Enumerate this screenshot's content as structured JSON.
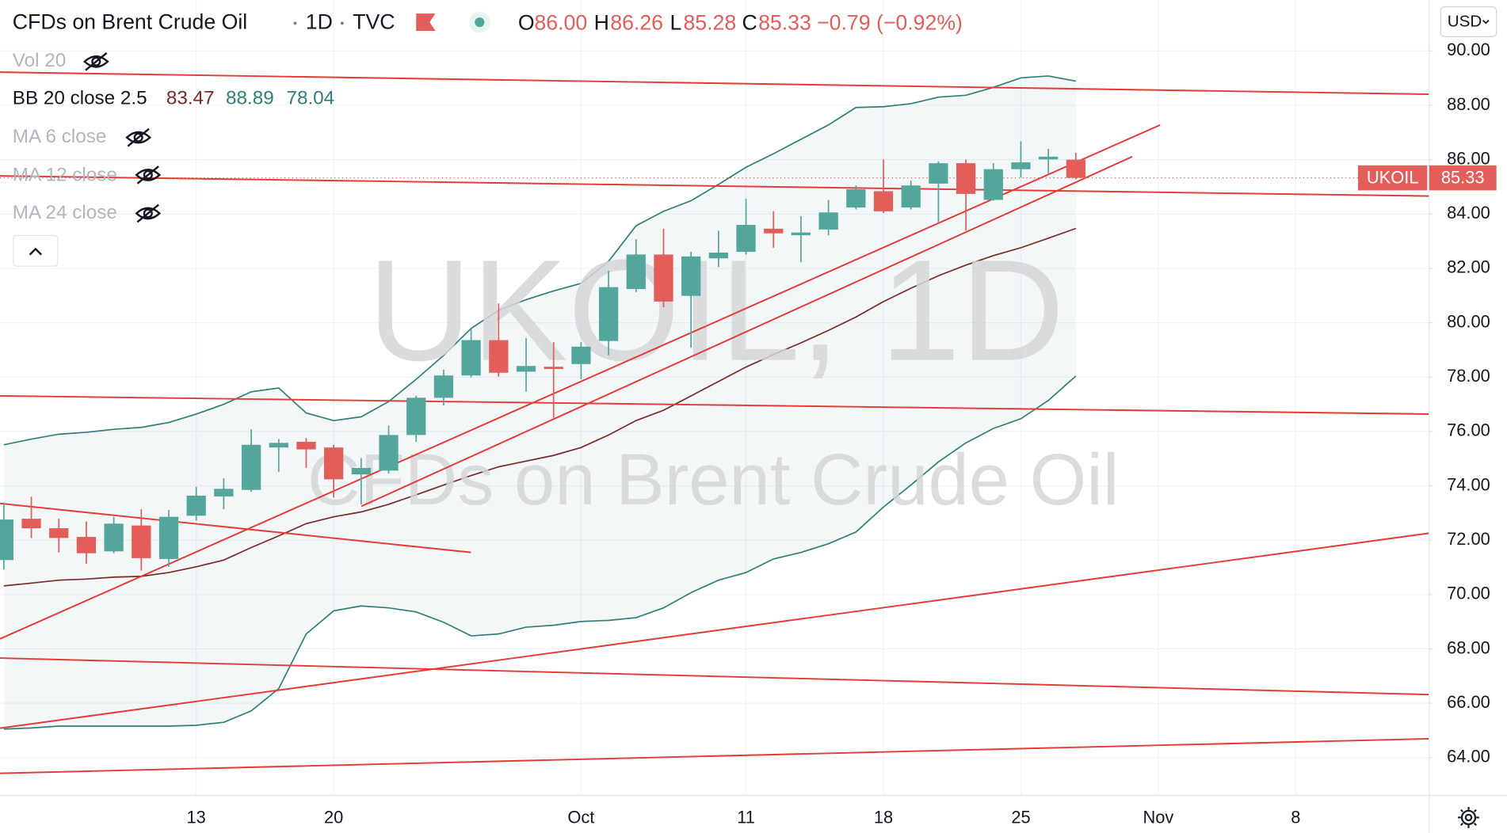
{
  "header": {
    "symbol_title": "CFDs on Brent Crude Oil",
    "interval": "1D",
    "source": "TVC",
    "open_label": "O",
    "open": "86.00",
    "high_label": "H",
    "high": "86.26",
    "low_label": "L",
    "low": "85.28",
    "close_label": "C",
    "close": "85.33",
    "change": "−0.79 (−0.92%)",
    "currency": "USD"
  },
  "indicators": {
    "vol": "Vol 20",
    "bb": "BB 20 close 2.5",
    "bb_basis": "83.47",
    "bb_upper": "88.89",
    "bb_lower": "78.04",
    "ma6": "MA 6 close",
    "ma12": "MA 12 close",
    "ma24": "MA 24 close"
  },
  "watermark": {
    "symbol": "UKOIL, 1D",
    "description": "CFDs on Brent Crude Oil"
  },
  "price_label": {
    "symbol": "UKOIL",
    "value": "85.33"
  },
  "chart_data": {
    "type": "candlestick",
    "categories": [
      null,
      null,
      null,
      null,
      null,
      null,
      null,
      "13",
      null,
      null,
      null,
      null,
      "20",
      null,
      null,
      null,
      null,
      null,
      null,
      null,
      null,
      "Oct",
      null,
      null,
      null,
      null,
      null,
      "11",
      null,
      null,
      null,
      null,
      "18",
      null,
      null,
      null,
      null,
      "25",
      null,
      null,
      null,
      null,
      "Nov",
      null,
      null,
      null,
      null,
      "8"
    ],
    "open": [
      71.27,
      72.79,
      72.44,
      72.12,
      71.59,
      72.54,
      71.31,
      72.9,
      73.61,
      73.85,
      75.41,
      75.62,
      75.41,
      74.42,
      74.56,
      75.87,
      77.24,
      78.06,
      79.36,
      78.2,
      78.38,
      78.48,
      79.33,
      81.24,
      82.51,
      80.99,
      82.37,
      82.61,
      83.46,
      83.22,
      83.43,
      84.24,
      84.84,
      84.24,
      85.12,
      85.87,
      84.52,
      85.65,
      86.01,
      86.0,
      null,
      null,
      null,
      null,
      null,
      null,
      null,
      null
    ],
    "high": [
      73.39,
      73.6,
      72.79,
      72.69,
      72.86,
      73.14,
      73.11,
      73.96,
      74.28,
      76.08,
      75.72,
      75.76,
      75.51,
      75.02,
      76.22,
      77.31,
      78.27,
      79.75,
      80.71,
      79.43,
      79.29,
      79.29,
      81.91,
      83.07,
      83.46,
      82.61,
      83.39,
      84.56,
      84.1,
      83.92,
      84.52,
      85.05,
      86.01,
      85.23,
      85.94,
      86.01,
      85.87,
      86.68,
      86.4,
      86.26,
      null,
      null,
      null,
      null,
      null,
      null,
      null,
      null
    ],
    "low": [
      70.92,
      72.08,
      71.55,
      71.13,
      71.52,
      70.88,
      71.02,
      72.72,
      73.14,
      73.78,
      74.52,
      74.66,
      73.57,
      73.32,
      74.45,
      75.62,
      76.96,
      77.99,
      78.02,
      77.46,
      76.5,
      77.92,
      78.8,
      81.13,
      80.57,
      79.08,
      82.05,
      82.51,
      82.76,
      82.23,
      83.22,
      84.17,
      84.03,
      84.17,
      83.67,
      83.39,
      84.49,
      85.34,
      85.48,
      85.28,
      null,
      null,
      null,
      null,
      null,
      null,
      null,
      null
    ],
    "close": [
      72.76,
      72.44,
      72.08,
      71.52,
      72.61,
      71.34,
      72.86,
      73.64,
      73.89,
      75.51,
      75.58,
      75.34,
      74.24,
      74.66,
      75.87,
      77.24,
      78.06,
      79.36,
      78.16,
      78.41,
      78.3,
      79.12,
      81.31,
      82.51,
      80.78,
      82.44,
      82.58,
      83.6,
      83.29,
      83.32,
      84.06,
      84.91,
      84.1,
      85.05,
      85.87,
      84.74,
      85.65,
      85.9,
      86.11,
      85.33,
      null,
      null,
      null,
      null,
      null,
      null,
      null,
      null
    ],
    "up_color": "#53a69b",
    "down_color": "#e35d5a",
    "overlays": [
      {
        "color": "#2f7f78",
        "values": [
          75.51,
          75.72,
          75.9,
          75.97,
          76.08,
          76.15,
          76.33,
          76.64,
          77.0,
          77.46,
          77.6,
          76.68,
          76.4,
          76.54,
          77.1,
          77.92,
          78.8,
          79.79,
          80.46,
          80.85,
          81.17,
          81.45,
          82.26,
          83.57,
          84.1,
          84.49,
          85.09,
          85.72,
          86.22,
          86.75,
          87.28,
          87.92,
          87.95,
          88.06,
          88.3,
          88.37,
          88.66,
          89.01,
          89.08,
          88.89,
          null,
          null,
          null,
          null,
          null,
          null,
          null,
          null
        ]
      },
      {
        "color": "#7a2a24",
        "values": [
          70.32,
          70.42,
          70.53,
          70.57,
          70.64,
          70.67,
          70.81,
          71.02,
          71.27,
          71.73,
          72.16,
          72.61,
          72.86,
          73.04,
          73.32,
          73.67,
          74.03,
          74.38,
          74.7,
          74.91,
          75.12,
          75.41,
          75.87,
          76.4,
          76.78,
          77.31,
          77.84,
          78.37,
          78.83,
          79.26,
          79.72,
          80.21,
          80.78,
          81.27,
          81.73,
          82.12,
          82.47,
          82.76,
          83.11,
          83.47,
          null,
          null,
          null,
          null,
          null,
          null,
          null,
          null
        ]
      },
      {
        "color": "#2f7f78",
        "values": [
          65.05,
          65.09,
          65.16,
          65.16,
          65.16,
          65.16,
          65.16,
          65.19,
          65.3,
          65.72,
          66.54,
          68.55,
          69.4,
          69.58,
          69.51,
          69.36,
          68.98,
          68.48,
          68.55,
          68.8,
          68.87,
          69.01,
          69.05,
          69.15,
          69.51,
          70.07,
          70.53,
          70.81,
          71.31,
          71.55,
          71.87,
          72.3,
          73.22,
          74.03,
          74.88,
          75.58,
          76.11,
          76.47,
          77.14,
          78.04,
          null,
          null,
          null,
          null,
          null,
          null,
          null,
          null
        ]
      }
    ],
    "ylim": [
      62.61,
      91.87
    ],
    "yticks": [
      {
        "value": 64,
        "label": "64.00"
      },
      {
        "value": 66,
        "label": "66.00"
      },
      {
        "value": 68,
        "label": "68.00"
      },
      {
        "value": 70,
        "label": "70.00"
      },
      {
        "value": 72,
        "label": "72.00"
      },
      {
        "value": 74,
        "label": "74.00"
      },
      {
        "value": 76,
        "label": "76.00"
      },
      {
        "value": 78,
        "label": "78.00"
      },
      {
        "value": 80,
        "label": "80.00"
      },
      {
        "value": 82,
        "label": "82.00"
      },
      {
        "value": 84,
        "label": "84.00"
      },
      {
        "value": 86,
        "label": "86.00"
      },
      {
        "value": 88,
        "label": "88.00"
      },
      {
        "value": 90,
        "label": "90.00"
      }
    ],
    "grid": true
  }
}
